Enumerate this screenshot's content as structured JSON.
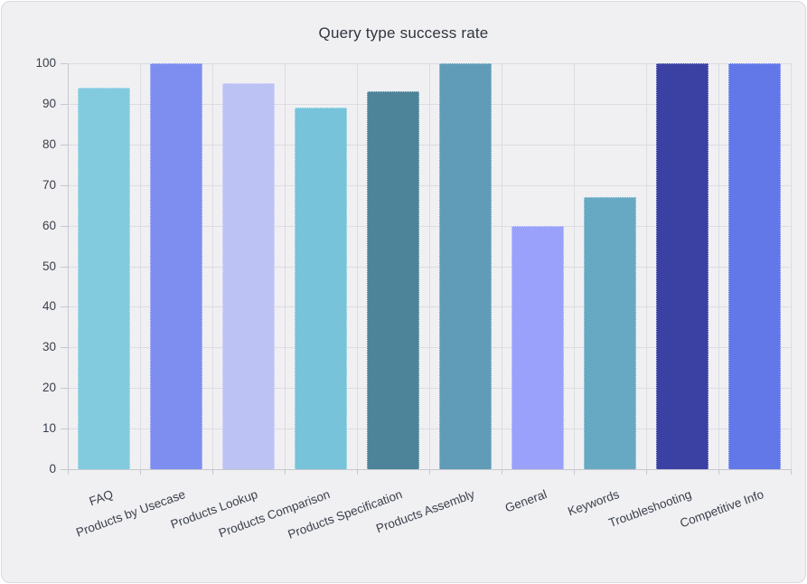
{
  "chart_data": {
    "type": "bar",
    "title": "Query type success rate",
    "categories": [
      "FAQ",
      "Products by Usecase",
      "Products Lookup",
      "Products Comparison",
      "Products Specification",
      "Products Assembly",
      "General",
      "Keywords",
      "Troubleshooting",
      "Competitive Info"
    ],
    "values": [
      94,
      100,
      95,
      89,
      93,
      100,
      60,
      67,
      100,
      100
    ],
    "bar_colors": [
      "#82cbdf",
      "#7d8ef0",
      "#bdc2f4",
      "#77c3d9",
      "#4d8499",
      "#609cb8",
      "#9aa1fb",
      "#67a9c3",
      "#3b41a3",
      "#6378e8"
    ],
    "xlabel": "",
    "ylabel": "",
    "ylim": [
      0,
      100
    ],
    "yticks": [
      0,
      10,
      20,
      30,
      40,
      50,
      60,
      70,
      80,
      90,
      100
    ],
    "grid": true,
    "legend": "none",
    "x_tick_rotation_deg": -20
  },
  "theme": {
    "card_bg": "#f0f0f2",
    "card_border": "#d9d9de",
    "grid_color": "#dcdce2",
    "axis_color": "#c6c7cd",
    "tick_text_color": "#3a3f4b",
    "title_color": "#30353f"
  }
}
